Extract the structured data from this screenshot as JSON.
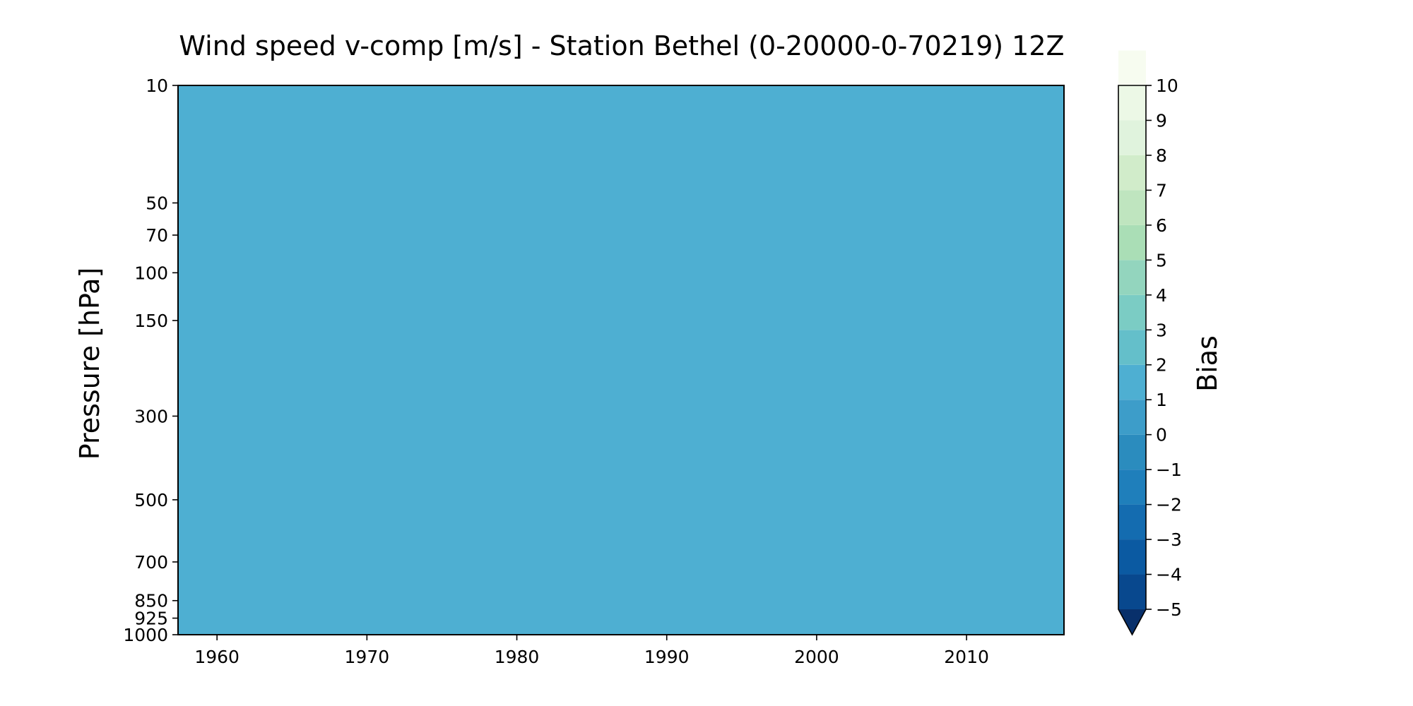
{
  "chart_data": {
    "type": "heatmap",
    "title": "Wind speed v-comp [m/s] - Station Bethel (0-20000-0-70219) 12Z",
    "xlabel": "",
    "ylabel": "Pressure [hPa]",
    "x_ticks": [
      "1960",
      "1970",
      "1980",
      "1990",
      "2000",
      "2010"
    ],
    "x_tick_values": [
      1960,
      1970,
      1980,
      1990,
      2000,
      2010
    ],
    "xlim": [
      1957.4,
      2016.5
    ],
    "y_ticks": [
      "10",
      "50",
      "70",
      "100",
      "150",
      "300",
      "500",
      "700",
      "850",
      "925",
      "1000"
    ],
    "y_tick_values": [
      10,
      50,
      70,
      100,
      150,
      300,
      500,
      700,
      850,
      925,
      1000
    ],
    "ylim": [
      1000,
      10
    ],
    "y_inverted": true,
    "field_value": 0.5,
    "field_color": "#4eafd2",
    "colorbar": {
      "label": "Bias",
      "ticks": [
        "10",
        "9",
        "8",
        "7",
        "6",
        "5",
        "4",
        "3",
        "2",
        "1",
        "0",
        "−1",
        "−2",
        "−3",
        "−4",
        "−5"
      ],
      "levels": [
        -5,
        -4,
        -3,
        -2,
        -1,
        0,
        1,
        2,
        3,
        4,
        5,
        6,
        7,
        8,
        9,
        10
      ],
      "extend": "min",
      "colors": [
        "#08488e",
        "#0b5aa2",
        "#146cb0",
        "#1f7fbb",
        "#2b8cbe",
        "#3d9dc9",
        "#4eafd2",
        "#64bfca",
        "#7bccc4",
        "#93d5be",
        "#aadeb6",
        "#bfe5bf",
        "#d1ecca",
        "#e0f3dd",
        "#ecf8e6",
        "#f7fcf0"
      ],
      "extend_color": "#08306b"
    },
    "grid": false
  }
}
